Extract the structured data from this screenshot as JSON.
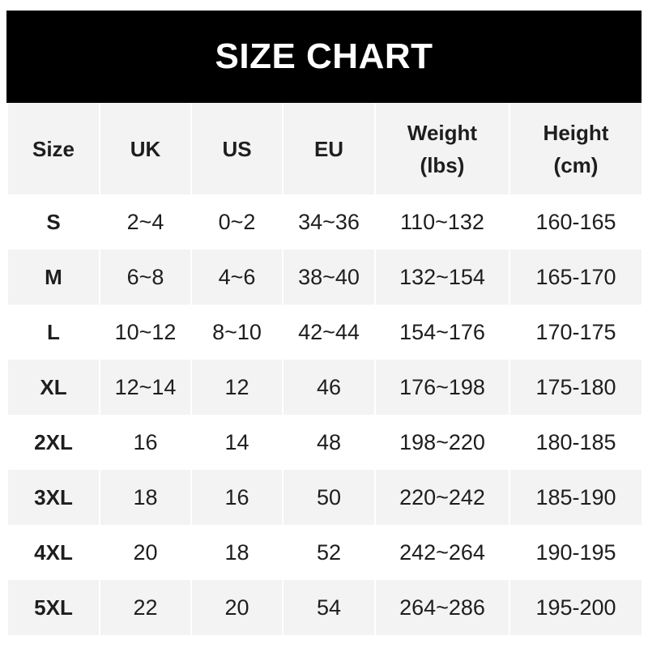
{
  "title": "SIZE CHART",
  "headers": [
    {
      "line1": "Size",
      "line2": ""
    },
    {
      "line1": "UK",
      "line2": ""
    },
    {
      "line1": "US",
      "line2": ""
    },
    {
      "line1": "EU",
      "line2": ""
    },
    {
      "line1": "Weight",
      "line2": "(lbs)"
    },
    {
      "line1": "Height",
      "line2": "(cm)"
    }
  ],
  "rows": [
    [
      "S",
      "2~4",
      "0~2",
      "34~36",
      "110~132",
      "160-165"
    ],
    [
      "M",
      "6~8",
      "4~6",
      "38~40",
      "132~154",
      "165-170"
    ],
    [
      "L",
      "10~12",
      "8~10",
      "42~44",
      "154~176",
      "170-175"
    ],
    [
      "XL",
      "12~14",
      "12",
      "46",
      "176~198",
      "175-180"
    ],
    [
      "2XL",
      "16",
      "14",
      "48",
      "198~220",
      "180-185"
    ],
    [
      "3XL",
      "18",
      "16",
      "50",
      "220~242",
      "185-190"
    ],
    [
      "4XL",
      "20",
      "18",
      "52",
      "242~264",
      "190-195"
    ],
    [
      "5XL",
      "22",
      "20",
      "54",
      "264~286",
      "195-200"
    ]
  ],
  "colors": {
    "banner": "#000000",
    "row_alt": "#f3f3f3",
    "text": "#1e1e1e"
  }
}
